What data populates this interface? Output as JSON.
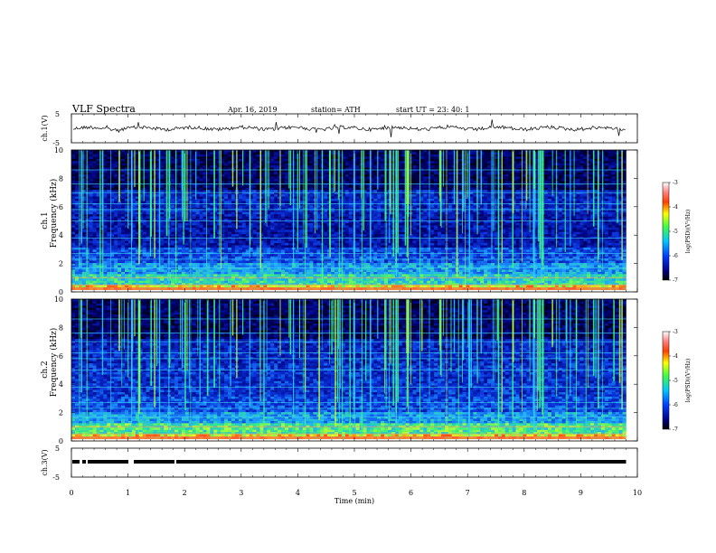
{
  "header": {
    "title": "VLF  Spectra",
    "date": "Apr. 16, 2019",
    "station": "station= ATH",
    "start_ut": "start  UT  =    23: 40: 1"
  },
  "chart_data": [
    {
      "type": "line",
      "ylabel": "ch.1(V)",
      "yticks": [
        "5",
        "-5"
      ],
      "ylim": [
        -5,
        5
      ],
      "description_values": {
        "baseline": 0,
        "noise_amplitude": 0.6
      }
    },
    {
      "type": "heatmap",
      "ylabel_top": "ch.1",
      "ylabel": "Frequency  (kHz)",
      "yticks": [
        "0",
        "2",
        "4",
        "6",
        "8",
        "10"
      ],
      "ylim": [
        0,
        10
      ],
      "colorbar": {
        "label": "log(PSD)(V²/Hz)",
        "ticks": [
          "-3",
          "-4",
          "-5",
          "-6",
          "-7"
        ],
        "range": [
          -7,
          -3
        ]
      }
    },
    {
      "type": "heatmap",
      "ylabel_top": "ch.2",
      "ylabel": "Frequency  (kHz)",
      "yticks": [
        "0",
        "2",
        "4",
        "6",
        "8",
        "10"
      ],
      "ylim": [
        0,
        10
      ],
      "colorbar": {
        "label": "log(PSD)(V²/Hz)",
        "ticks": [
          "-3",
          "-4",
          "-5",
          "-6",
          "-7"
        ],
        "range": [
          -7,
          -3
        ]
      }
    },
    {
      "type": "line",
      "ylabel": "ch.3(V)",
      "yticks": [
        "5",
        "-5"
      ],
      "ylim": [
        -5,
        5
      ],
      "description_values": {
        "baseline": 0
      }
    }
  ],
  "xaxis": {
    "label": "Time  (min)",
    "ticks": [
      "0",
      "1",
      "2",
      "3",
      "4",
      "5",
      "6",
      "7",
      "8",
      "9",
      "10"
    ],
    "xlim": [
      0,
      10
    ],
    "data_end": 9.8
  },
  "colors": {
    "spectrogram_low": "#000000",
    "spectrogram_mid": "#1440c8",
    "spectrogram_high": "#30d0ff",
    "hiss_band": "#40ff40"
  }
}
